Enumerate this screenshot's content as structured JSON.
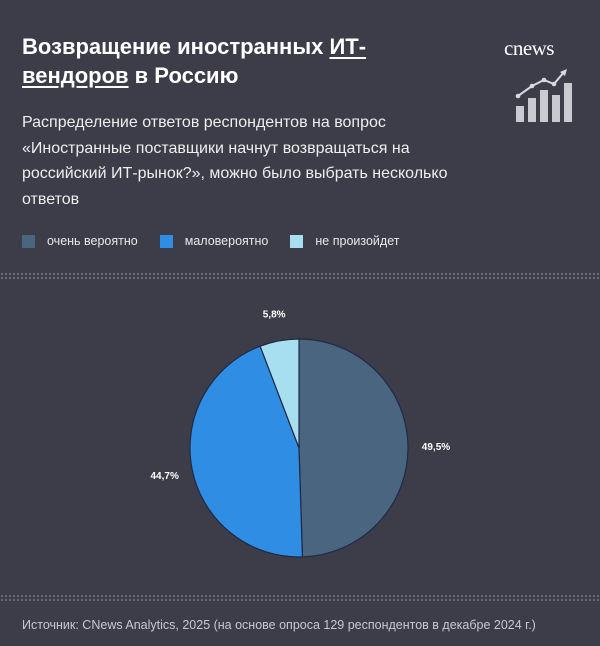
{
  "header": {
    "title_part1": "Возвращение иностранных ",
    "title_underlined": "ИТ-вендоров",
    "title_part2": " в Россию",
    "subtitle": "Распределение ответов респондентов на вопрос «Иностранные поставщики начнут возвращаться на российский ИТ-рынок?», можно было выбрать несколько ответов"
  },
  "logo": {
    "text": "cnews",
    "icon": "bar-chart-trend-icon"
  },
  "colors": {
    "background": "#3d3d4a",
    "very_likely": "#4a6580",
    "unlikely": "#2f8de4",
    "wont_happen": "#a8dff0"
  },
  "chart_data": {
    "type": "pie",
    "legend_position": "top-left",
    "categories": [
      "очень вероятно",
      "маловероятно",
      "не произойдет"
    ],
    "values": [
      49.5,
      44.7,
      5.8
    ],
    "labels": [
      "49,5%",
      "44,7%",
      "5,8%"
    ]
  },
  "source": "Источник: CNews Analytics, 2025 (на основе опроса 129 респондентов в декабре 2024 г.)"
}
